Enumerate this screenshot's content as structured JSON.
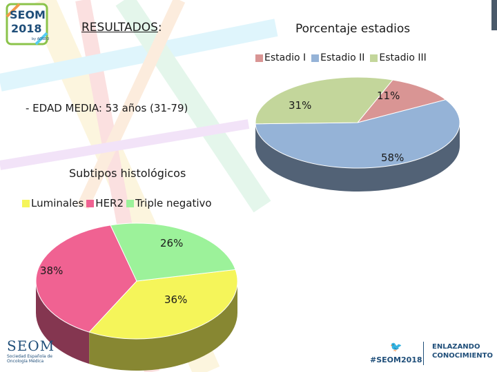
{
  "header": {
    "logo_text": "SEOM",
    "logo_year": "2018",
    "logo_sub": "by ADSEO",
    "title": "RESULTADOS",
    "title_suffix": ":"
  },
  "age_text": "- EDAD MEDIA: 53 años (31-79)",
  "chart_data": [
    {
      "type": "pie",
      "title": "Porcentaje estadios",
      "categories": [
        "Estadio I",
        "Estadio II",
        "Estadio III"
      ],
      "values": [
        11,
        58,
        31
      ],
      "labels": [
        "11%",
        "58%",
        "31%"
      ],
      "colors": [
        "#d99594",
        "#95b3d7",
        "#c3d69b"
      ],
      "legend_position": "top"
    },
    {
      "type": "pie",
      "title": "Subtipos histológicos",
      "categories": [
        "Luminales",
        "HER2",
        "Triple negativo"
      ],
      "values": [
        36,
        38,
        26
      ],
      "labels": [
        "36%",
        "38%",
        "26%"
      ],
      "colors": [
        "#f5f55a",
        "#f06292",
        "#9cf29a"
      ],
      "legend_colors": [
        "#f5f55a",
        "#f06292",
        "#9cf29a"
      ],
      "legend_position": "top"
    }
  ],
  "footer": {
    "org": "SEOM",
    "org_sub": "Sociedad Española de Oncología Médica",
    "hashtag": "#SEOM2018",
    "twitter_icon": "twitter-icon",
    "slogan_line1": "ENLAZANDO",
    "slogan_line2": "CONOCIMIENTO"
  }
}
